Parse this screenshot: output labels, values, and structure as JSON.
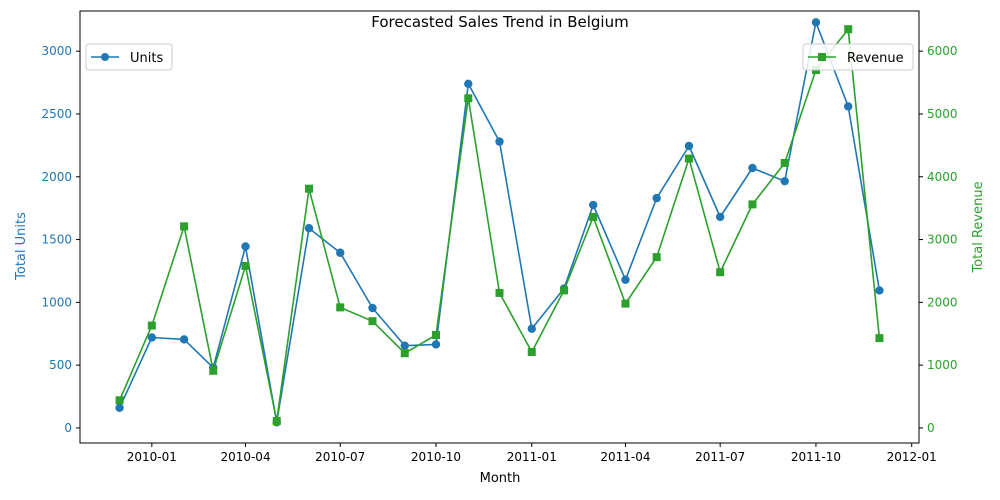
{
  "chart_data": {
    "type": "line",
    "title": "Forecasted Sales Trend in Belgium",
    "xlabel": "Month",
    "ylabel_left": "Total Units",
    "ylabel_right": "Total Revenue",
    "x": [
      "2009-12-01",
      "2010-01-01",
      "2010-02-01",
      "2010-03-01",
      "2010-04-01",
      "2010-05-01",
      "2010-06-01",
      "2010-07-01",
      "2010-08-01",
      "2010-09-01",
      "2010-10-01",
      "2010-11-01",
      "2010-12-01",
      "2011-01-01",
      "2011-02-01",
      "2011-03-01",
      "2011-04-01",
      "2011-05-01",
      "2011-06-01",
      "2011-07-01",
      "2011-08-01",
      "2011-09-01",
      "2011-10-01",
      "2011-11-01",
      "2011-12-01"
    ],
    "x_ticks": [
      "2010-01",
      "2010-04",
      "2010-07",
      "2010-10",
      "2011-01",
      "2011-04",
      "2011-07",
      "2011-10",
      "2012-01"
    ],
    "x_tick_dates": [
      "2010-01-01",
      "2010-04-01",
      "2010-07-01",
      "2010-10-01",
      "2011-01-01",
      "2011-04-01",
      "2011-07-01",
      "2011-10-01",
      "2012-01-01"
    ],
    "xlim": [
      "2009-10-24",
      "2012-01-08"
    ],
    "yleft_lim": [
      -120,
      3320
    ],
    "yleft_ticks": [
      0,
      500,
      1000,
      1500,
      2000,
      2500,
      3000
    ],
    "yright_lim": [
      -240,
      6640
    ],
    "yright_ticks": [
      0,
      1000,
      2000,
      3000,
      4000,
      5000,
      6000
    ],
    "series": [
      {
        "name": "Units",
        "axis": "left",
        "color": "#1f77b4",
        "marker": "circle",
        "values": [
          160,
          720,
          705,
          480,
          1445,
          45,
          1590,
          1395,
          955,
          655,
          665,
          2740,
          2280,
          790,
          1110,
          1775,
          1180,
          1830,
          2245,
          1680,
          2070,
          1965,
          3230,
          2560,
          1095
        ]
      },
      {
        "name": "Revenue",
        "axis": "right",
        "color": "#2ca02c",
        "marker": "square",
        "values": [
          440,
          1630,
          3210,
          910,
          2580,
          110,
          3810,
          1920,
          1700,
          1190,
          1480,
          5250,
          2150,
          1210,
          2190,
          3360,
          1980,
          2720,
          4290,
          2480,
          3560,
          4220,
          5700,
          6350,
          1430
        ]
      }
    ],
    "legend_left_position": "upper-left",
    "legend_right_position": "upper-right",
    "grid": false
  }
}
